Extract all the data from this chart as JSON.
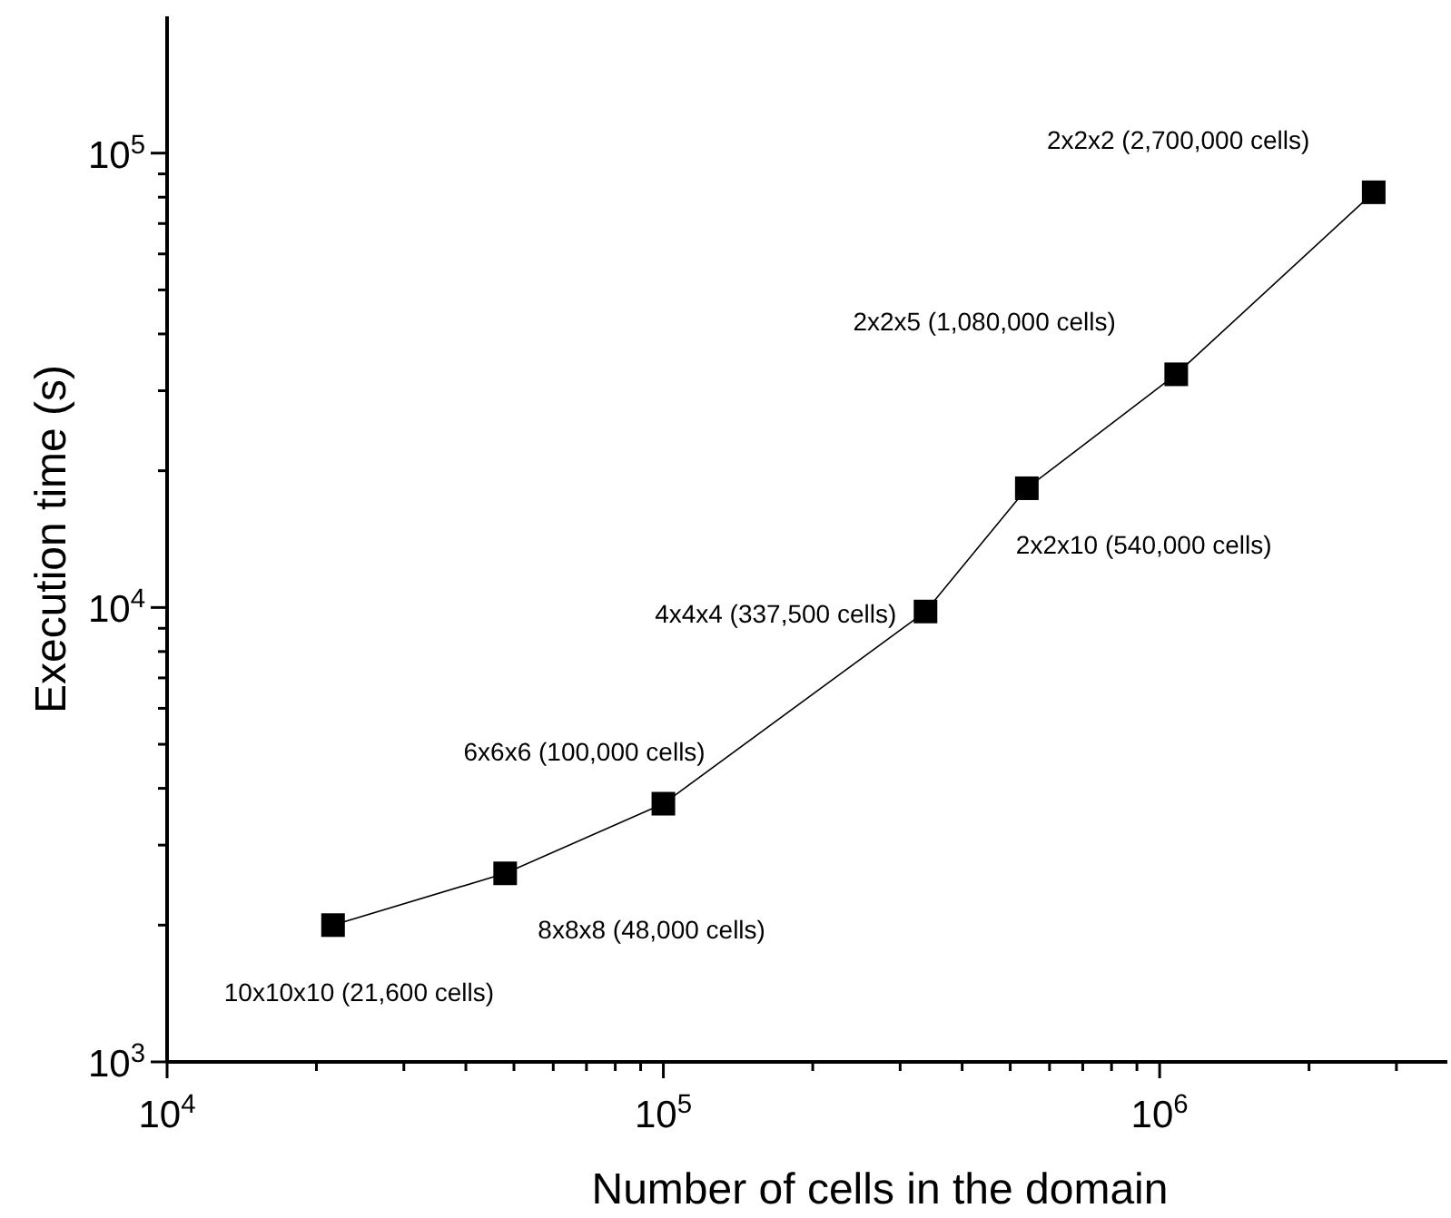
{
  "chart_data": {
    "type": "line",
    "xlabel": "Number of cells in the domain",
    "ylabel": "Execution time (s)",
    "log": "xy",
    "marker": "square",
    "line_style": "solid",
    "grid": false,
    "x": [
      21600,
      48000,
      100000,
      337500,
      540000,
      1080000,
      2700000
    ],
    "series": [
      {
        "color": "#000000",
        "values": [
          2000,
          2600,
          3700,
          9800,
          18300,
          32600,
          82000
        ]
      }
    ],
    "xlim": [
      10000,
      3800000
    ],
    "xticks": [
      {
        "value": 10000,
        "label": "10$^{4}$"
      },
      {
        "value": 20000,
        "label": null
      },
      {
        "value": 30000,
        "label": null
      },
      {
        "value": 40000,
        "label": null
      },
      {
        "value": 50000,
        "label": null
      },
      {
        "value": 60000,
        "label": null
      },
      {
        "value": 70000,
        "label": null
      },
      {
        "value": 80000,
        "label": null
      },
      {
        "value": 90000,
        "label": null
      },
      {
        "value": 100000,
        "label": "10$^{5}$"
      },
      {
        "value": 200000,
        "label": null
      },
      {
        "value": 300000,
        "label": null
      },
      {
        "value": 400000,
        "label": null
      },
      {
        "value": 500000,
        "label": null
      },
      {
        "value": 600000,
        "label": null
      },
      {
        "value": 700000,
        "label": null
      },
      {
        "value": 800000,
        "label": null
      },
      {
        "value": 900000,
        "label": null
      },
      {
        "value": 1000000,
        "label": "10$^{6}$"
      },
      {
        "value": 2000000,
        "label": null
      },
      {
        "value": 3000000,
        "label": null
      }
    ],
    "ylim": [
      1000,
      200000
    ],
    "yticks": [
      {
        "value": 1000,
        "label": "10$^{3}$"
      },
      {
        "value": 2000,
        "label": null
      },
      {
        "value": 3000,
        "label": null
      },
      {
        "value": 4000,
        "label": null
      },
      {
        "value": 5000,
        "label": null
      },
      {
        "value": 6000,
        "label": null
      },
      {
        "value": 7000,
        "label": null
      },
      {
        "value": 8000,
        "label": null
      },
      {
        "value": 9000,
        "label": null
      },
      {
        "value": 10000,
        "label": "10$^{4}$"
      },
      {
        "value": 20000,
        "label": null
      },
      {
        "value": 30000,
        "label": null
      },
      {
        "value": 40000,
        "label": null
      },
      {
        "value": 50000,
        "label": null
      },
      {
        "value": 60000,
        "label": null
      },
      {
        "value": 70000,
        "label": null
      },
      {
        "value": 80000,
        "label": null
      },
      {
        "value": 90000,
        "label": null
      },
      {
        "value": 100000,
        "label": "10$^{5}$"
      }
    ],
    "annotations": [
      {
        "text": "10x10x10 (21,600 cells)",
        "x": 21600,
        "y": 2000
      },
      {
        "text": "8x8x8 (48,000 cells)",
        "x": 48000,
        "y": 2600
      },
      {
        "text": "6x6x6 (100,000 cells)",
        "x": 100000,
        "y": 3700
      },
      {
        "text": "4x4x4 (337,500 cells)",
        "x": 337500,
        "y": 9800
      },
      {
        "text": "2x2x10 (540,000 cells)",
        "x": 540000,
        "y": 18300
      },
      {
        "text": "2x2x5 (1,080,000 cells)",
        "x": 1080000,
        "y": 32600
      },
      {
        "text": "2x2x2 (2,700,000 cells)",
        "x": 2700000,
        "y": 82000
      }
    ]
  }
}
